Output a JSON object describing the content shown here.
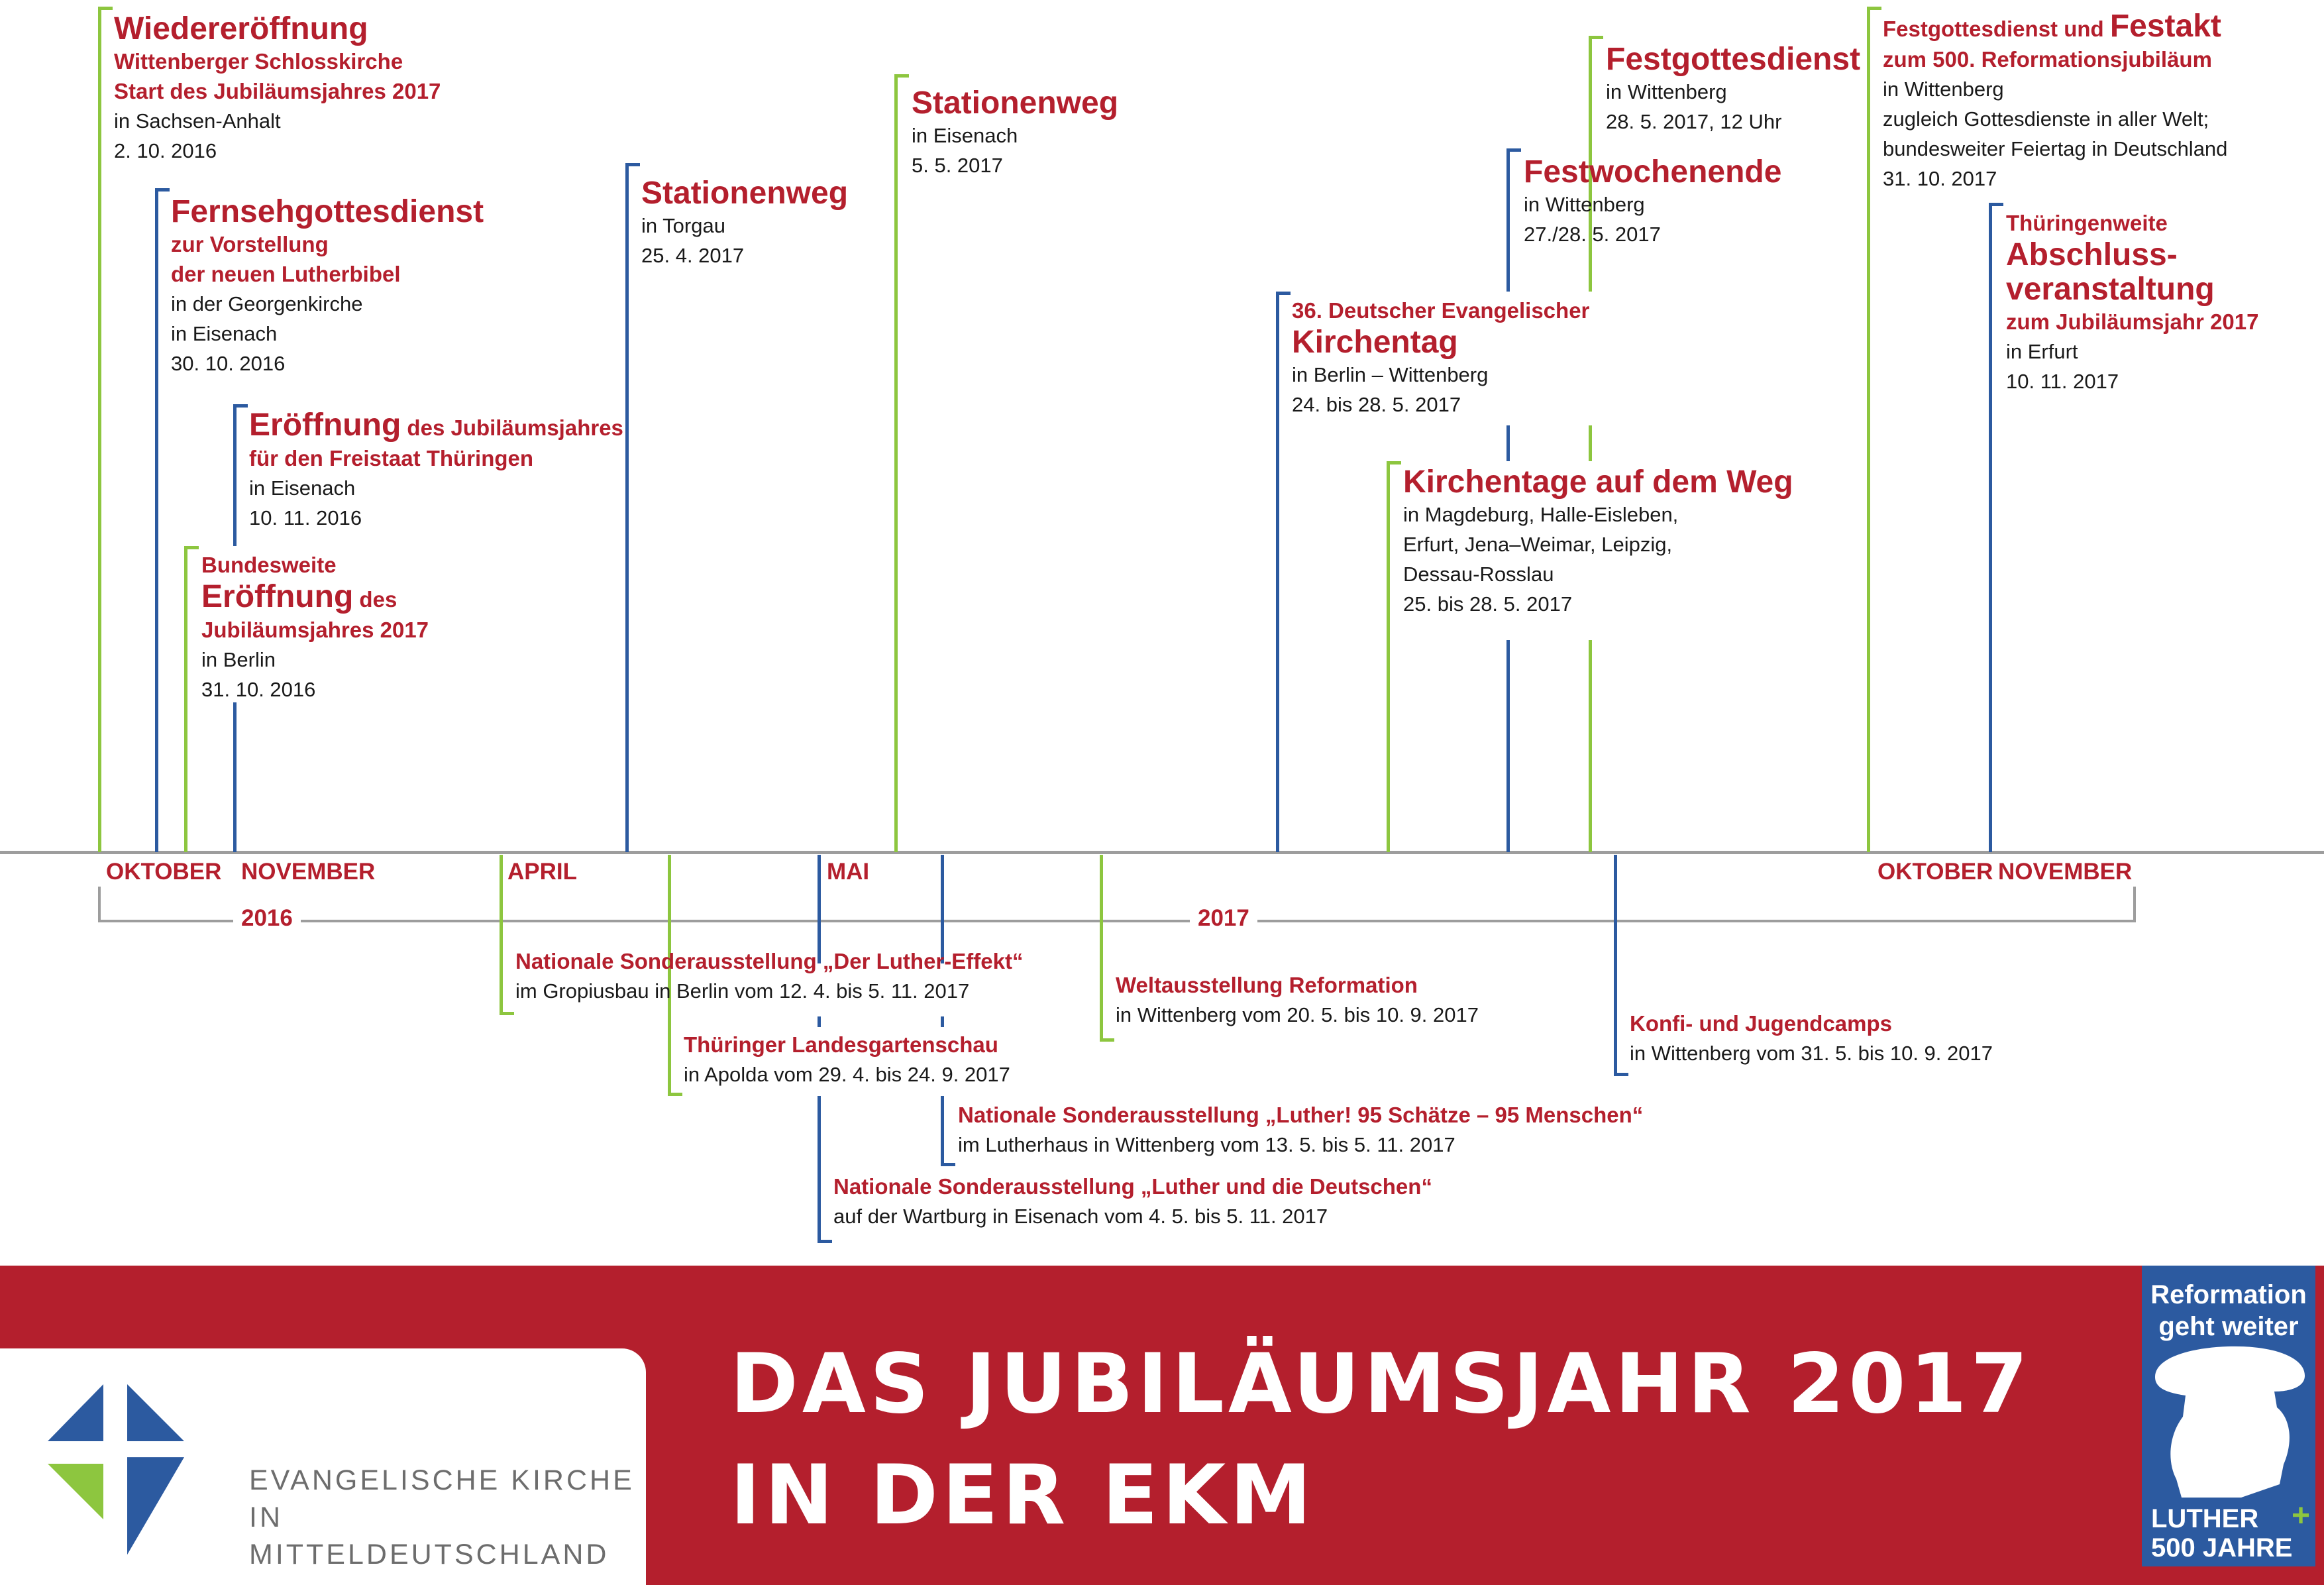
{
  "months": {
    "oktober_2016": "OKTOBER",
    "november_2016": "NOVEMBER",
    "april": "APRIL",
    "mai": "MAI",
    "oktober_2017": "OKTOBER",
    "november_2017": "NOVEMBER"
  },
  "years": {
    "y2016": "2016",
    "y2017": "2017"
  },
  "events_above": {
    "wiedereroeffnung": {
      "title": "Wiedereröffnung",
      "sub1": "Wittenberger Schlosskirche",
      "sub2": "Start des Jubiläumsjahres 2017",
      "place": "in Sachsen-Anhalt",
      "date": "2. 10. 2016"
    },
    "fernsehgottesdienst": {
      "title": "Fernsehgottesdienst",
      "sub1": "zur Vorstellung",
      "sub2": "der neuen Lutherbibel",
      "place1": "in der Georgenkirche",
      "place2": "in Eisenach",
      "date": "30. 10. 2016"
    },
    "eroeffnung_thueringen": {
      "title": "Eröffnung",
      "title_rest": " des Jubiläumsjahres",
      "sub": "für den Freistaat Thüringen",
      "place": "in Eisenach",
      "date": "10. 11. 2016"
    },
    "bundesweite_eroeffnung": {
      "pre": "Bundesweite",
      "title": "Eröffnung",
      "title_rest": " des",
      "sub": "Jubiläumsjahres 2017",
      "place": "in Berlin",
      "date": "31. 10. 2016"
    },
    "stationenweg_torgau": {
      "title": "Stationenweg",
      "place": "in Torgau",
      "date": "25. 4. 2017"
    },
    "stationenweg_eisenach": {
      "title": "Stationenweg",
      "place": "in Eisenach",
      "date": "5. 5. 2017"
    },
    "kirchentag": {
      "pre": "36. Deutscher Evangelischer",
      "title": "Kirchentag",
      "place": "in Berlin – Wittenberg",
      "date": "24. bis 28. 5. 2017"
    },
    "kirchentage_weg": {
      "title": "Kirchentage auf dem Weg",
      "place1": "in Magdeburg, Halle-Eisleben,",
      "place2": "Erfurt, Jena–Weimar, Leipzig,",
      "place3": "Dessau-Rosslau",
      "date": "25. bis 28. 5. 2017"
    },
    "festwochenende": {
      "title": "Festwochenende",
      "place": "in Wittenberg",
      "date": "27./28. 5. 2017"
    },
    "festgottesdienst": {
      "title": "Festgottesdienst",
      "place": "in Wittenberg",
      "date": "28. 5. 2017, 12 Uhr"
    },
    "festakt": {
      "line1_a": "Festgottesdienst und ",
      "line1_b": "Festakt",
      "line2": "zum 500. Reformationsjubiläum",
      "place": "in Wittenberg",
      "note1": "zugleich Gottesdienste in aller Welt;",
      "note2": "bundesweiter Feiertag in Deutschland",
      "date": "31. 10. 2017"
    },
    "abschluss": {
      "pre": "Thüringenweite",
      "title1": "Abschluss-",
      "title2": "veranstaltung",
      "sub": "zum Jubiläumsjahr 2017",
      "place": "in Erfurt",
      "date": "10. 11. 2017"
    }
  },
  "events_below": {
    "luther_effekt": {
      "title": "Nationale Sonderausstellung „Der Luther-Effekt“",
      "detail": "im Gropiusbau in Berlin vom 12. 4. bis 5. 11. 2017"
    },
    "landesgartenschau": {
      "title": "Thüringer Landesgartenschau",
      "detail": "in Apolda vom 29. 4. bis 24. 9. 2017"
    },
    "weltausstellung": {
      "title": "Weltausstellung Reformation",
      "detail": "in Wittenberg vom 20. 5. bis 10. 9. 2017"
    },
    "konfi": {
      "title": "Konfi- und Jugendcamps",
      "detail": "in Wittenberg vom 31. 5. bis 10. 9. 2017"
    },
    "schaetze": {
      "title": "Nationale Sonderausstellung „Luther! 95 Schätze – 95 Menschen“",
      "detail": "im Lutherhaus in Wittenberg vom 13. 5. bis 5. 11. 2017"
    },
    "deutschen": {
      "title": "Nationale Sonderausstellung „Luther und die Deutschen“",
      "detail": "auf der Wartburg in Eisenach vom 4. 5. bis 5. 11. 2017"
    }
  },
  "banner": {
    "title_line1": "DAS JUBILÄUMSJAHR 2017",
    "title_line2": "IN DER EKM",
    "org_line1": "EVANGELISCHE KIRCHE",
    "org_line2": "IN MITTELDEUTSCHLAND",
    "logo_top1": "Reformation",
    "logo_top2": "geht weiter",
    "logo_bottom1": "LUTHER",
    "logo_bottom2": "500 JAHRE"
  },
  "colors": {
    "red": "#b41f2d",
    "blue": "#2c5aa0",
    "green": "#8dc63f",
    "axis": "#9d9d9d",
    "org_text": "#6d6d6d"
  },
  "icons": {
    "ekm_logo": "cross-logo-icon",
    "luther_logo": "luther-silhouette-icon"
  }
}
